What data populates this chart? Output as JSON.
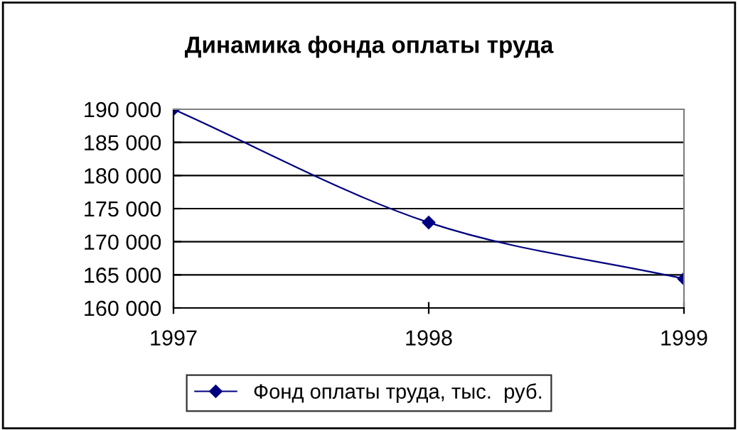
{
  "chart_data": {
    "type": "line",
    "title": "Динамика фонда оплаты труда",
    "categories": [
      "1997",
      "1998",
      "1999"
    ],
    "series": [
      {
        "name": "Фонд оплаты труда, тыс.  руб.",
        "color": "#000080",
        "values": [
          190000,
          172900,
          164400
        ]
      }
    ],
    "ylim": [
      160000,
      190000
    ],
    "yticks": [
      {
        "value": 160000,
        "label": "160 000"
      },
      {
        "value": 165000,
        "label": "165 000"
      },
      {
        "value": 170000,
        "label": "170 000"
      },
      {
        "value": 175000,
        "label": "175 000"
      },
      {
        "value": 180000,
        "label": "180 000"
      },
      {
        "value": 185000,
        "label": "185 000"
      },
      {
        "value": 190000,
        "label": "190 000"
      }
    ],
    "grid": "y",
    "legend": "bottom",
    "marker": "diamond",
    "line_style": "solid"
  }
}
